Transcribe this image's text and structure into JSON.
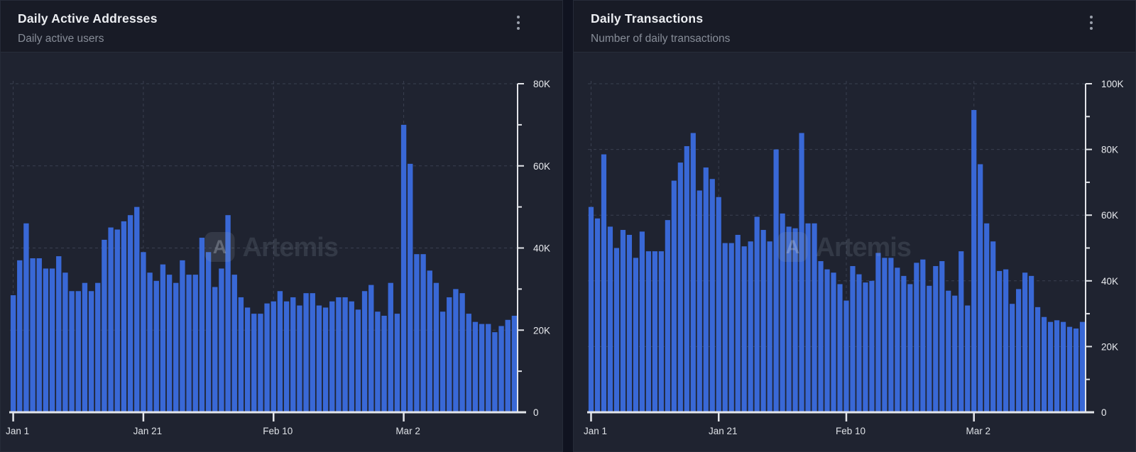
{
  "watermark": {
    "text": "Artemis",
    "logo_letter": "A"
  },
  "colors": {
    "bar": "#3968d6",
    "page_bg": "#101320",
    "panel_bg": "#1f2330",
    "header_bg": "#181b26",
    "grid": "#3a4050",
    "axis": "#e2e4e9",
    "tick_label": "#e9ebef",
    "title": "#eceef2",
    "subtitle": "#878d98"
  },
  "chart_data": [
    {
      "type": "bar",
      "title": "Daily Active Addresses",
      "subtitle": "Daily active users",
      "unit": "K",
      "y_max_k": 80,
      "ylim": [
        0,
        80000
      ],
      "y_minor_step_k": 10,
      "y_major_step_k": 20,
      "y_tick_labels": [
        "0",
        "20K",
        "40K",
        "60K",
        "80K"
      ],
      "x_tick_labels": [
        "Jan 1",
        "Jan 21",
        "Feb 10",
        "Mar 2"
      ],
      "x_tick_days": [
        0,
        20,
        40,
        60
      ],
      "grid": true,
      "legend": false,
      "bar_color": "#3968d6",
      "values_k": [
        28.5,
        37,
        46,
        37.5,
        37.5,
        35,
        35,
        38,
        34,
        29.5,
        29.5,
        31.5,
        29.5,
        31.5,
        42,
        45,
        44.5,
        46.5,
        48,
        50,
        39,
        34,
        32,
        36,
        33.5,
        31.5,
        37,
        33.5,
        33.5,
        42.5,
        39,
        30.5,
        35,
        48,
        33.5,
        28,
        25.5,
        24,
        24,
        26.5,
        27,
        29.5,
        27,
        28,
        26,
        29,
        29,
        26,
        25.5,
        27,
        28,
        28,
        27,
        25,
        29.5,
        31,
        24.5,
        23.5,
        31.5,
        24,
        70,
        60.5,
        38.5,
        38.5,
        34.5,
        31.5,
        24.5,
        28,
        30,
        29,
        24,
        22,
        21.5,
        21.5,
        19.5,
        21,
        22.5,
        23.5
      ]
    },
    {
      "type": "bar",
      "title": "Daily Transactions",
      "subtitle": "Number of daily transactions",
      "unit": "K",
      "y_max_k": 100,
      "ylim": [
        0,
        100000
      ],
      "y_minor_step_k": 10,
      "y_major_step_k": 20,
      "y_tick_labels": [
        "0",
        "20K",
        "40K",
        "60K",
        "80K",
        "100K"
      ],
      "x_tick_labels": [
        "Jan 1",
        "Jan 21",
        "Feb 10",
        "Mar 2"
      ],
      "x_tick_days": [
        0,
        20,
        40,
        60
      ],
      "grid": true,
      "legend": false,
      "bar_color": "#3968d6",
      "values_k": [
        62.5,
        59,
        78.5,
        56.5,
        50,
        55.5,
        54,
        47,
        55,
        49,
        49,
        49,
        58.5,
        70.5,
        76,
        81,
        85,
        67.5,
        74.5,
        71,
        65.5,
        51.5,
        51.5,
        54,
        50.5,
        52,
        59.5,
        55.5,
        52,
        80,
        60.5,
        56.5,
        56,
        85,
        57.5,
        57.5,
        46,
        43.5,
        42.5,
        39,
        34,
        44.5,
        42,
        39.5,
        40,
        48.5,
        47,
        47,
        44,
        41.5,
        39,
        45.5,
        46.5,
        38.5,
        44.5,
        46,
        37,
        35.5,
        49,
        32.5,
        92,
        75.5,
        57.5,
        52,
        43,
        43.5,
        33,
        37.5,
        42.5,
        41.5,
        32,
        29,
        27.5,
        28,
        27.5,
        26,
        25.5,
        27.5
      ]
    }
  ]
}
